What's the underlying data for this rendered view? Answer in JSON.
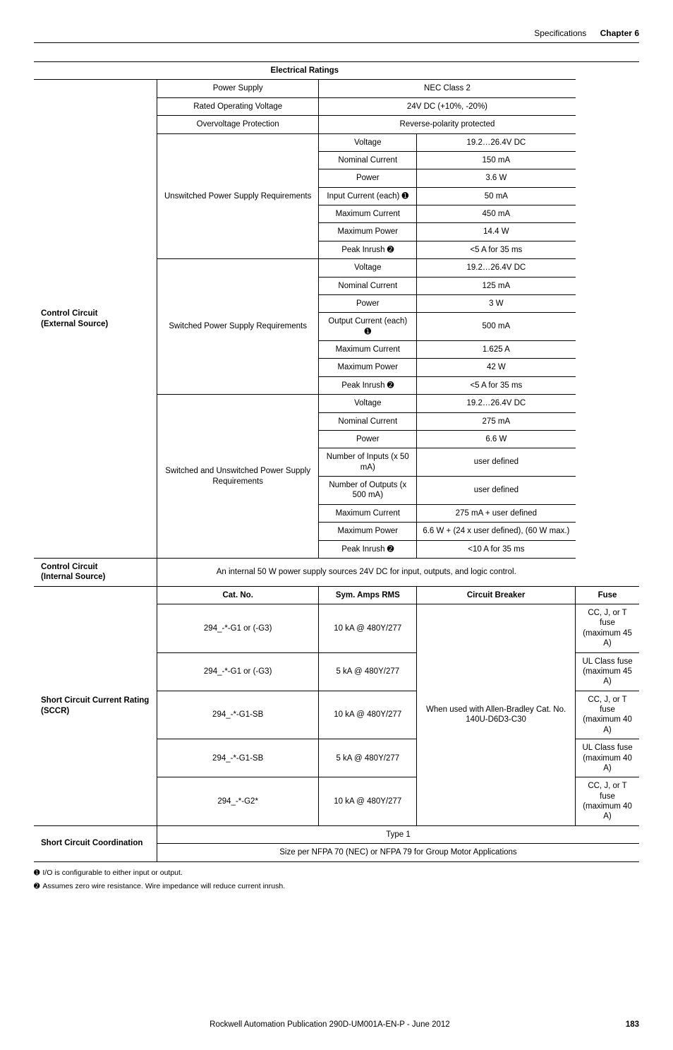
{
  "header": {
    "spec": "Specifications",
    "chapter": "Chapter 6"
  },
  "table_title": "Electrical Ratings",
  "control_ext_label": "Control Circuit\n(External Source)",
  "control_int_label": "Control Circuit\n(Internal Source)",
  "sccr_label": "Short Circuit Current Rating (SCCR)",
  "scc_label": "Short Circuit Coordination",
  "simple_rows": [
    {
      "label": "Power Supply",
      "value": "NEC Class 2"
    },
    {
      "label": "Rated Operating Voltage",
      "value": "24V DC (+10%, -20%)"
    },
    {
      "label": "Overvoltage Protection",
      "value": "Reverse-polarity protected"
    }
  ],
  "groups": [
    {
      "label": "Unswitched Power Supply Requirements",
      "rows": [
        {
          "p": "Voltage",
          "v": "19.2…26.4V DC"
        },
        {
          "p": "Nominal Current",
          "v": "150 mA"
        },
        {
          "p": "Power",
          "v": "3.6 W"
        },
        {
          "p": "Input Current (each) ➊",
          "v": "50 mA"
        },
        {
          "p": "Maximum Current",
          "v": "450 mA"
        },
        {
          "p": "Maximum Power",
          "v": "14.4 W"
        },
        {
          "p": "Peak Inrush ➋",
          "v": "<5 A for 35 ms"
        }
      ]
    },
    {
      "label": "Switched Power Supply Requirements",
      "rows": [
        {
          "p": "Voltage",
          "v": "19.2…26.4V DC"
        },
        {
          "p": "Nominal Current",
          "v": "125 mA"
        },
        {
          "p": "Power",
          "v": "3 W"
        },
        {
          "p": "Output Current (each) ➊",
          "v": "500 mA"
        },
        {
          "p": "Maximum Current",
          "v": "1.625 A"
        },
        {
          "p": "Maximum Power",
          "v": "42 W"
        },
        {
          "p": "Peak Inrush ➋",
          "v": "<5 A for 35 ms"
        }
      ]
    },
    {
      "label": "Switched and Unswitched Power Supply Requirements",
      "rows": [
        {
          "p": "Voltage",
          "v": "19.2…26.4V DC"
        },
        {
          "p": "Nominal Current",
          "v": "275 mA"
        },
        {
          "p": "Power",
          "v": "6.6 W"
        },
        {
          "p": "Number of Inputs (x 50 mA)",
          "v": "user defined"
        },
        {
          "p": "Number of Outputs (x 500 mA)",
          "v": "user defined"
        },
        {
          "p": "Maximum Current",
          "v": "275 mA + user defined"
        },
        {
          "p": "Maximum Power",
          "v": "6.6 W + (24 x user defined), (60 W max.)"
        },
        {
          "p": "Peak Inrush ➋",
          "v": "<10 A for 35 ms"
        }
      ]
    }
  ],
  "control_int_text": "An internal 50 W power supply sources 24V DC for input, outputs, and logic control.",
  "sccr_header": [
    "Cat. No.",
    "Sym. Amps RMS",
    "Circuit Breaker",
    "Fuse"
  ],
  "sccr_breaker": "When used with Allen-Bradley Cat. No. 140U-D6D3-C30",
  "sccr_rows": [
    {
      "cat": "294_-*-G1 or (-G3)",
      "amps": "10 kA @ 480Y/277",
      "fuse": "CC, J, or T fuse\n(maximum 45 A)"
    },
    {
      "cat": "294_-*-G1 or (-G3)",
      "amps": "5 kA @ 480Y/277",
      "fuse": "UL Class fuse\n(maximum 45 A)"
    },
    {
      "cat": "294_-*-G1-SB",
      "amps": "10 kA @ 480Y/277",
      "fuse": "CC, J, or T fuse\n(maximum 40 A)"
    },
    {
      "cat": "294_-*-G1-SB",
      "amps": "5 kA @ 480Y/277",
      "fuse": "UL Class fuse\n(maximum 40 A)"
    },
    {
      "cat": "294_-*-G2*",
      "amps": "10 kA @ 480Y/277",
      "fuse": "CC, J, or T fuse\n(maximum 40 A)"
    }
  ],
  "scc_rows": [
    "Type 1",
    "Size per NFPA 70 (NEC) or NFPA 79 for Group Motor Applications"
  ],
  "footnotes": [
    "I/O is configurable to either input or output.",
    "Assumes zero wire resistance. Wire impedance will reduce current inrush."
  ],
  "footer": {
    "pub": "Rockwell Automation Publication 290D-UM001A-EN-P - June 2012",
    "page": "183"
  }
}
